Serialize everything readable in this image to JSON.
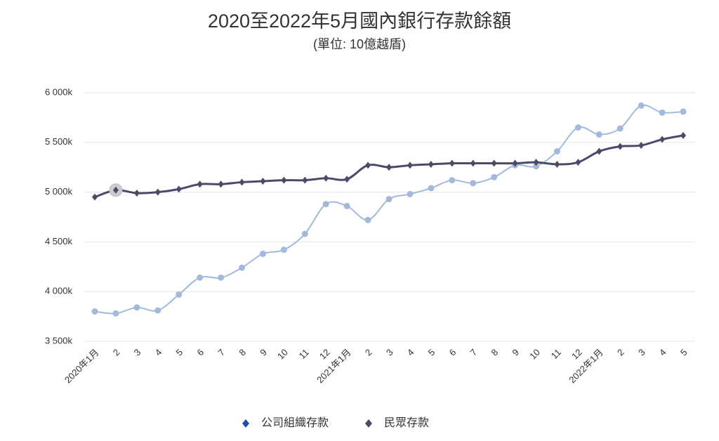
{
  "chart_data": {
    "type": "line",
    "title": "2020至2022年5月國內銀行存款餘額",
    "subtitle": "(單位: 10億越盾)",
    "categories": [
      "2020年1月",
      "2",
      "3",
      "4",
      "5",
      "6",
      "7",
      "8",
      "9",
      "10",
      "11",
      "12",
      "2021年1月",
      "2",
      "3",
      "4",
      "5",
      "6",
      "7",
      "8",
      "9",
      "10",
      "11",
      "12",
      "2022年1月",
      "2",
      "3",
      "4",
      "5"
    ],
    "series": [
      {
        "name": "公司組織存款",
        "color": "#a3b9db",
        "values": [
          3800000,
          3780000,
          3840000,
          3810000,
          3970000,
          4140000,
          4140000,
          4240000,
          4380000,
          4420000,
          4580000,
          4880000,
          4860000,
          4720000,
          4930000,
          4980000,
          5040000,
          5120000,
          5090000,
          5150000,
          5270000,
          5260000,
          5410000,
          5650000,
          5580000,
          5640000,
          5870000,
          5800000,
          5810000
        ]
      },
      {
        "name": "民眾存款",
        "color": "#4b4a6b",
        "values": [
          4950000,
          5020000,
          4990000,
          5000000,
          5030000,
          5080000,
          5080000,
          5100000,
          5110000,
          5120000,
          5120000,
          5140000,
          5130000,
          5270000,
          5250000,
          5270000,
          5280000,
          5290000,
          5290000,
          5290000,
          5290000,
          5300000,
          5280000,
          5300000,
          5410000,
          5460000,
          5470000,
          5530000,
          5570000
        ]
      }
    ],
    "ylim": [
      3500000,
      6000000
    ],
    "yticks": [
      {
        "value": 3500000,
        "label": "3 500k"
      },
      {
        "value": 4000000,
        "label": "4 000k"
      },
      {
        "value": 4500000,
        "label": "4 500k"
      },
      {
        "value": 5000000,
        "label": "5 000k"
      },
      {
        "value": 5500000,
        "label": "5 500k"
      },
      {
        "value": 6000000,
        "label": "6 000k"
      }
    ],
    "grid": true,
    "legend": "bottom"
  }
}
